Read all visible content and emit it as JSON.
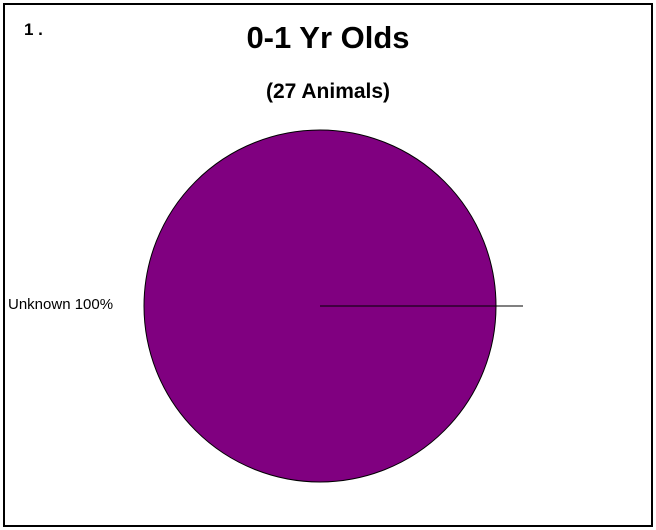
{
  "figure_number": "1 .",
  "chart_data": {
    "type": "pie",
    "title": "0-1 Yr Olds",
    "subtitle": "(27 Animals)",
    "slices": [
      {
        "label": "Unknown 100%",
        "value": 100,
        "color": "#800080"
      }
    ],
    "legend": "none"
  }
}
